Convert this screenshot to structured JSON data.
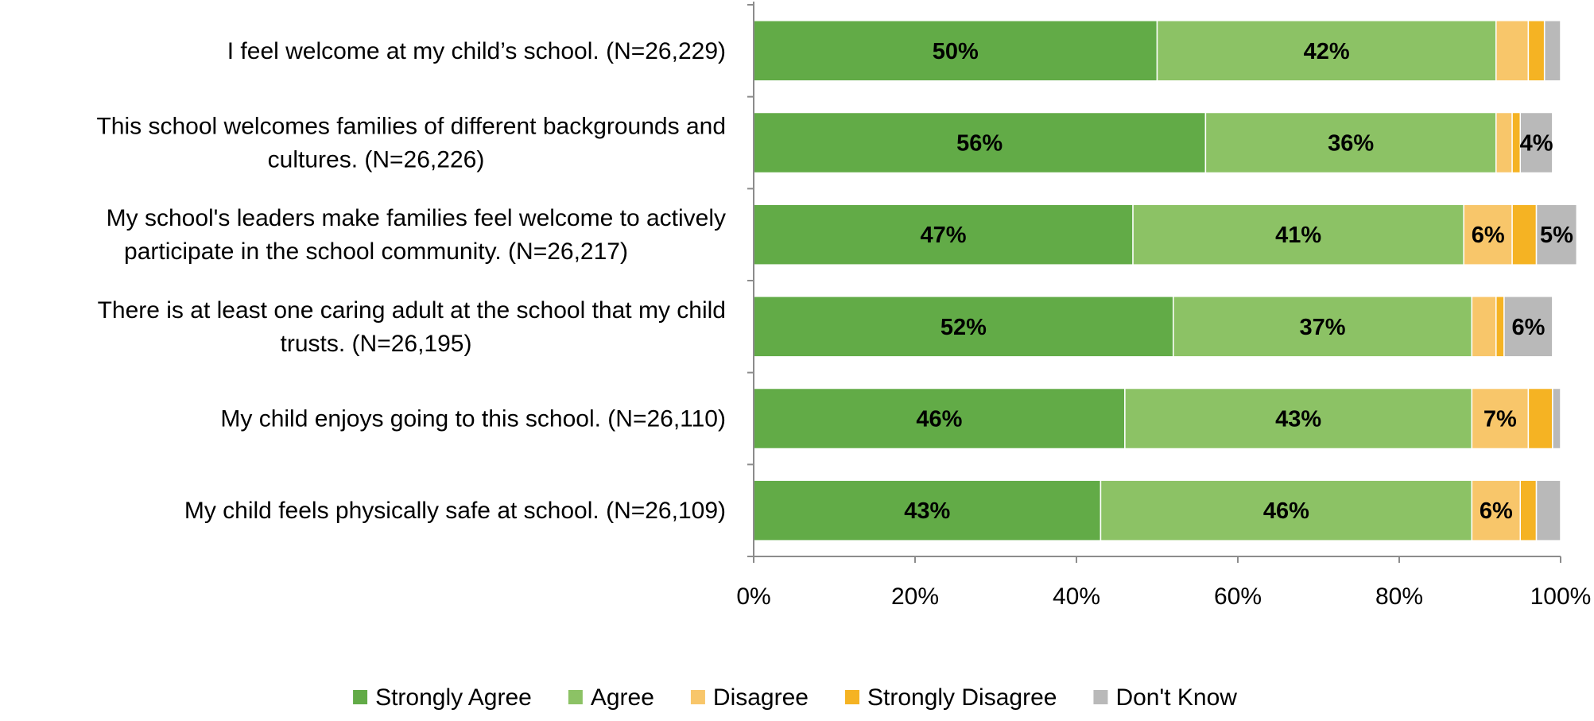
{
  "chart_data": {
    "type": "bar",
    "orientation": "horizontal",
    "stacked": true,
    "categories": [
      [
        "I feel welcome at my child’s school. (N=26,229)"
      ],
      [
        "This school welcomes families of different backgrounds and",
        "cultures. (N=26,226)"
      ],
      [
        "My school's leaders make families feel welcome to actively",
        "participate in the school community. (N=26,217)"
      ],
      [
        "There is at least one caring adult at the school that my child",
        "trusts. (N=26,195)"
      ],
      [
        "My child enjoys going to this school. (N=26,110)"
      ],
      [
        "My child feels physically safe at school. (N=26,109)"
      ]
    ],
    "series": [
      {
        "name": "Strongly Agree",
        "color": "#62ab47",
        "values": [
          50,
          56,
          47,
          52,
          46,
          43
        ]
      },
      {
        "name": "Agree",
        "color": "#8cc265",
        "values": [
          42,
          36,
          41,
          37,
          43,
          46
        ]
      },
      {
        "name": "Disagree",
        "color": "#f8c66a",
        "values": [
          4,
          2,
          6,
          3,
          7,
          6
        ]
      },
      {
        "name": "Strongly Disagree",
        "color": "#f5b323",
        "values": [
          2,
          1,
          3,
          1,
          3,
          2
        ]
      },
      {
        "name": "Don't Know",
        "color": "#b9b9b9",
        "values": [
          2,
          4,
          5,
          6,
          1,
          3
        ]
      }
    ],
    "data_labels": [
      [
        "50%",
        "42%",
        "",
        "",
        ""
      ],
      [
        "56%",
        "36%",
        "",
        "",
        "4%"
      ],
      [
        "47%",
        "41%",
        "6%",
        "",
        "5%"
      ],
      [
        "52%",
        "37%",
        "",
        "",
        "6%"
      ],
      [
        "46%",
        "43%",
        "7%",
        "",
        ""
      ],
      [
        "43%",
        "46%",
        "6%",
        "",
        ""
      ]
    ],
    "xlim": [
      0,
      100
    ],
    "xticks": [
      "0%",
      "20%",
      "40%",
      "60%",
      "80%",
      "100%"
    ],
    "grid": false,
    "legend": "bottom"
  }
}
